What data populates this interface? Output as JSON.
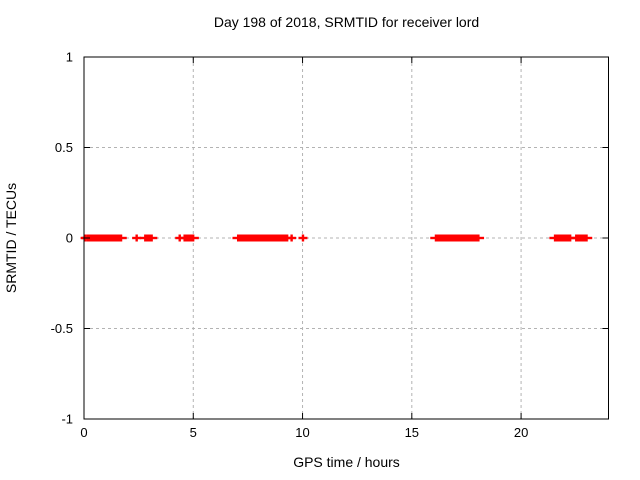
{
  "chart_data": {
    "type": "scatter",
    "title": "Day 198 of 2018, SRMTID for receiver lord",
    "xlabel": "GPS time / hours",
    "ylabel": "SRMTID / TECUs",
    "xlim": [
      0,
      24
    ],
    "ylim": [
      -1,
      1
    ],
    "xticks": [
      0,
      5,
      10,
      15,
      20
    ],
    "xtick_labels": [
      "0",
      "5",
      "10",
      "15",
      "20"
    ],
    "yticks": [
      1,
      0.5,
      0,
      -0.5,
      -1
    ],
    "ytick_labels": [
      "1",
      "0.5",
      "0",
      "-0.5",
      "-1"
    ],
    "grid": true,
    "legend_visible": false,
    "marker": "plus",
    "series": [
      {
        "name": "SRMTID",
        "y_value": 0,
        "segments_hours": [
          [
            0.1,
            1.75
          ],
          [
            2.75,
            3.15
          ],
          [
            4.55,
            5.05
          ],
          [
            7.0,
            9.35
          ],
          [
            16.05,
            18.1
          ],
          [
            21.5,
            22.3
          ],
          [
            22.47,
            23.05
          ]
        ],
        "isolated_points_hours": [
          0.05,
          2.41,
          4.38,
          9.5,
          10.02
        ]
      }
    ]
  },
  "colors": {
    "data": "#ff0000",
    "grid": "#b3b3b3",
    "axis": "#000000",
    "text": "#000000",
    "background": "#ffffff"
  }
}
